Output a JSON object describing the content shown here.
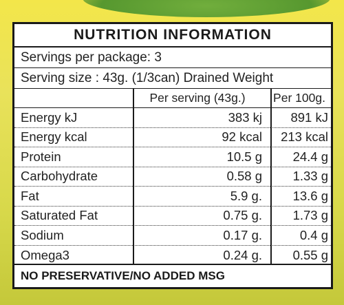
{
  "label": {
    "title": "NUTRITION  INFORMATION",
    "servings_per_package": "Servings per package: 3",
    "serving_size": "Serving size : 43g. (1/3can) Drained Weight",
    "headers": {
      "nutrient": "",
      "per_serving": "Per serving (43g.)",
      "per_100g": "Per 100g."
    },
    "rows": [
      {
        "nutrient": "Energy kJ",
        "per_serving": "383 kj",
        "per_100g": "891 kJ"
      },
      {
        "nutrient": "Energy kcal",
        "per_serving": "92 kcal",
        "per_100g": "213 kcal"
      },
      {
        "nutrient": "Protein",
        "per_serving": "10.5 g",
        "per_100g": "24.4 g"
      },
      {
        "nutrient": "Carbohydrate",
        "per_serving": "0.58 g",
        "per_100g": "1.33 g"
      },
      {
        "nutrient": "Fat",
        "per_serving": "5.9 g.",
        "per_100g": "13.6 g"
      },
      {
        "nutrient": "Saturated Fat",
        "per_serving": "0.75 g.",
        "per_100g": "1.73 g"
      },
      {
        "nutrient": "Sodium",
        "per_serving": "0.17 g.",
        "per_100g": "0.4 g"
      },
      {
        "nutrient": "Omega3",
        "per_serving": "0.24 g.",
        "per_100g": "0.55 g"
      }
    ],
    "footer": "NO PRESERVATIVE/NO ADDED MSG"
  },
  "colors": {
    "background": "#e9e25a",
    "panel": "#ffffff",
    "text": "#1a1a1a",
    "accent_green": "#3b8a2a"
  }
}
